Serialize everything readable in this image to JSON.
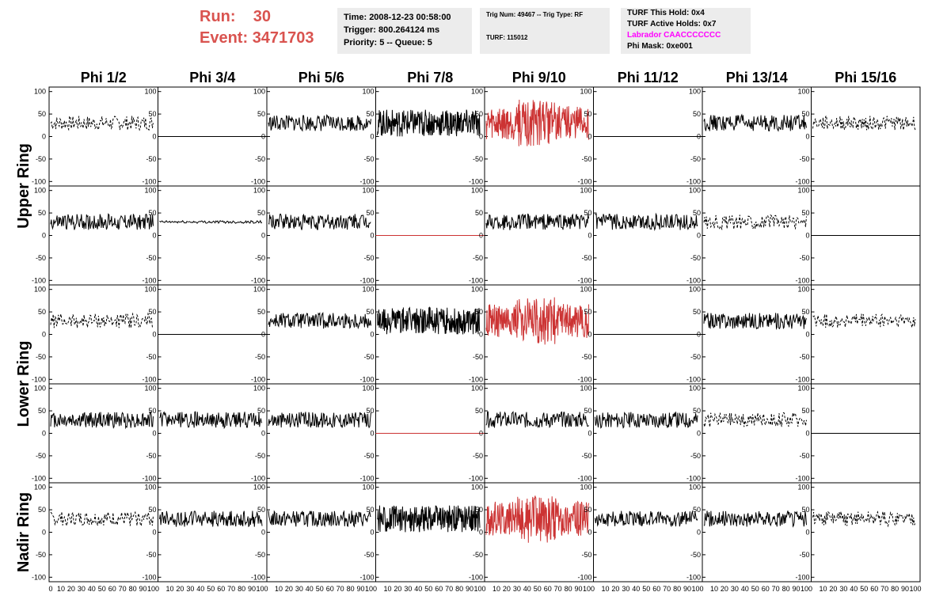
{
  "header": {
    "run_label": "Run:",
    "run_value": "30",
    "event_label": "Event:",
    "event_value": "3471703",
    "time": "Time: 2008-12-23 00:58:00",
    "trigger": "Trigger: 800.264124 ms",
    "priority": "Priority: 5 -- Queue: 5",
    "trig_num": "Trig Num: 49467 -- Trig Type: RF",
    "turf": "TURF: 115012",
    "turf_this_hold": "TURF This Hold: 0x4",
    "turf_active_holds": "TURF Active Holds: 0x7",
    "labrador": "Labrador CAACCCCCCC",
    "phi_mask": "Phi Mask: 0xe001"
  },
  "colors": {
    "header_red": "#d9534f",
    "trace_red": "#cc3333",
    "labrador_magenta": "#ff00ff",
    "box_gray": "#ececec"
  },
  "columns": [
    "Phi 1/2",
    "Phi 3/4",
    "Phi 5/6",
    "Phi 7/8",
    "Phi 9/10",
    "Phi 11/12",
    "Phi 13/14",
    "Phi 15/16"
  ],
  "rows": [
    {
      "label": "Upper Ring",
      "span": 2
    },
    {
      "label": "Lower Ring",
      "span": 2
    },
    {
      "label": "Nadir Ring",
      "span": 1
    }
  ],
  "chart_data": {
    "type": "line",
    "xlim": [
      0,
      100
    ],
    "ylim": [
      -110,
      110
    ],
    "yticks": [
      -100,
      -50,
      0,
      50,
      100
    ],
    "xtick_labels": [
      "0",
      "10",
      "20",
      "30",
      "40",
      "50",
      "60",
      "70",
      "80",
      "90",
      "100"
    ],
    "panels": [
      [
        "dashed",
        "flat",
        "solid",
        "dense",
        "red",
        "flat",
        "solid",
        "dashed"
      ],
      [
        "solid",
        "quiet",
        "solid",
        "flat-red",
        "solid",
        "solid",
        "dashed",
        "flat"
      ],
      [
        "dashed",
        "flat",
        "solid",
        "dense",
        "red",
        "flat",
        "solid",
        "dashed"
      ],
      [
        "solid",
        "solid",
        "solid",
        "flat-red",
        "solid",
        "solid",
        "dashed",
        "flat"
      ],
      [
        "dashed",
        "solid",
        "solid",
        "dense",
        "red",
        "solid",
        "solid",
        "dashed"
      ]
    ],
    "baseline": 30
  }
}
